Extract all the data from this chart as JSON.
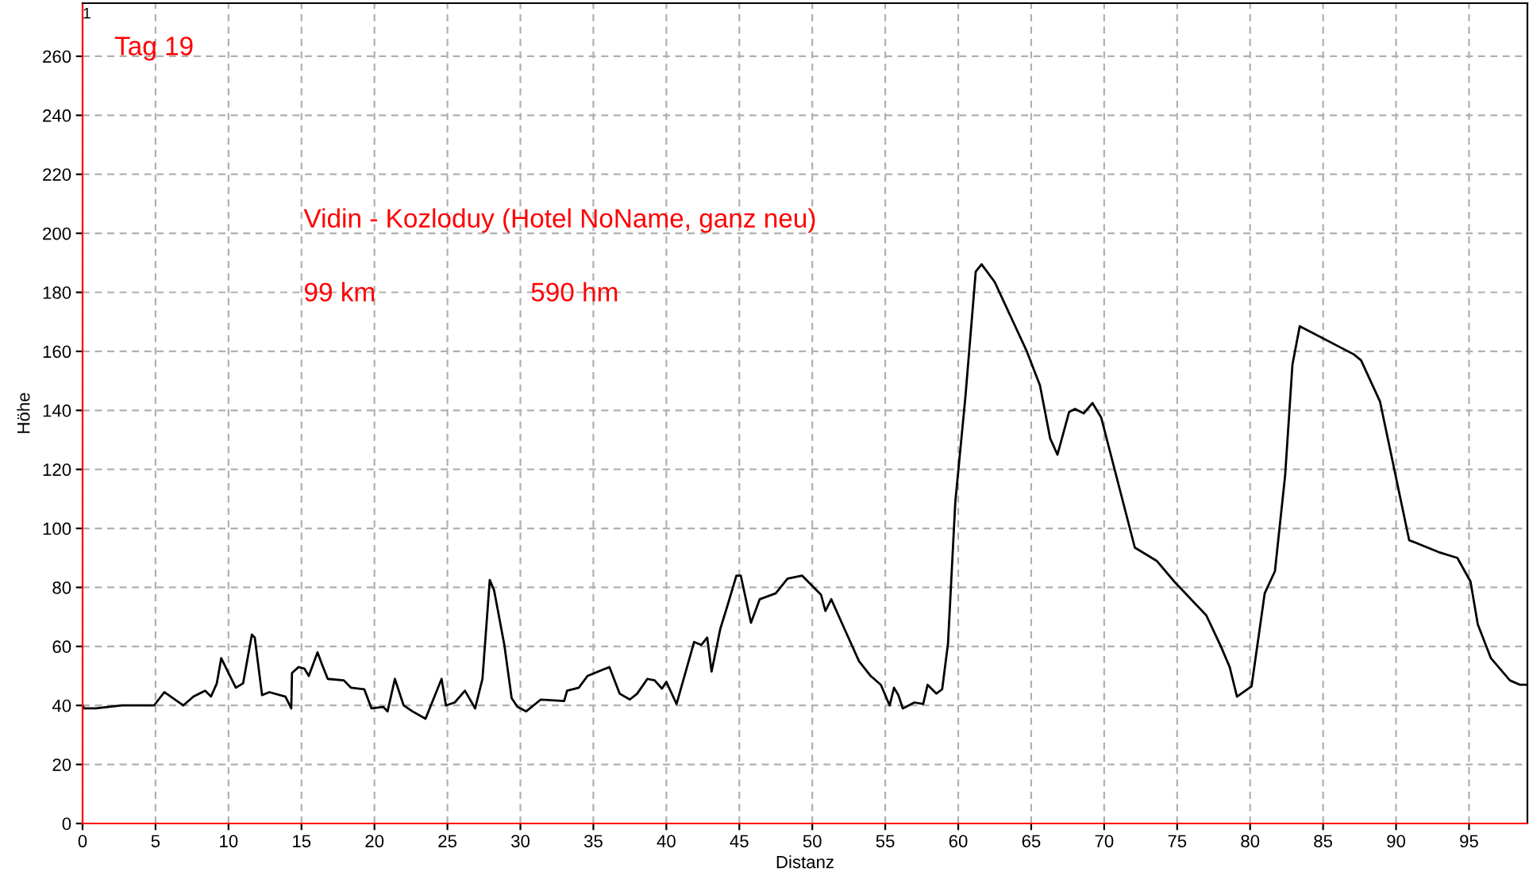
{
  "chart_data": {
    "type": "line",
    "title": "Tag 19",
    "subtitle": "Vidin - Kozloduy (Hotel NoName, ganz neu)",
    "annotations": [
      "99 km",
      "590 hm",
      "1"
    ],
    "xlabel": "Distanz",
    "ylabel": "Höhe",
    "series": [
      {
        "color": "#000000",
        "x": [
          0,
          0.1,
          0.9,
          2.7,
          4.9,
          5.6,
          6.9,
          7.6,
          8.4,
          8.8,
          9.2,
          9.5,
          10.5,
          11,
          11.6,
          11.8,
          12.3,
          12.8,
          13.9,
          14.3,
          14.35,
          14.8,
          15.2,
          15.5,
          16.1,
          16.4,
          16.8,
          17.9,
          18.4,
          19.3,
          19.8,
          20.6,
          20.9,
          21.4,
          22,
          22.6,
          23.5,
          24.6,
          24.9,
          25.5,
          26.2,
          26.9,
          27.4,
          27.9,
          28.2,
          28.9,
          29.4,
          29.8,
          30.4,
          31.4,
          33,
          33.2,
          34,
          34.6,
          36.1,
          36.8,
          37.5,
          38,
          38.7,
          39.2,
          39.7,
          40,
          40.7,
          41.9,
          42.4,
          42.8,
          43.1,
          43.7,
          44.2,
          44.8,
          45.1,
          45.8,
          46.4,
          47.5,
          48.3,
          49.3,
          50.6,
          50.9,
          51.3,
          52.2,
          53.2,
          54,
          54.7,
          55.3,
          55.6,
          55.9,
          56.2,
          57,
          57.6,
          57.9,
          58.5,
          58.9,
          59.3,
          59.8,
          60.5,
          61.2,
          61.6,
          62.5,
          64.7,
          65.6,
          66.3,
          66.8,
          67.6,
          68,
          68.6,
          69.2,
          69.8,
          72.1,
          73.6,
          74.8,
          77,
          78,
          78.6,
          79.1,
          80.1,
          81,
          81.7,
          82.4,
          82.9,
          83.4,
          87.1,
          87.6,
          88.9,
          90.9,
          92.9,
          94.2,
          95.1,
          95.6,
          96.5,
          97.8,
          98.5,
          99
        ],
        "values": [
          40,
          39,
          39,
          40,
          40,
          44.5,
          40,
          43,
          45,
          43,
          47.5,
          56,
          46,
          47.5,
          64,
          63,
          43.5,
          44.5,
          43,
          39,
          51,
          53,
          52.5,
          50,
          58,
          54,
          49,
          48.5,
          46,
          45.5,
          39,
          39.5,
          38,
          49,
          40,
          38,
          35.5,
          49,
          40,
          41,
          45,
          39,
          49,
          82.5,
          79,
          60.5,
          42.5,
          39.5,
          38,
          42,
          41.5,
          45,
          46,
          50,
          53,
          44,
          42,
          44,
          49,
          48.5,
          45.7,
          48,
          40.5,
          61.5,
          60.5,
          63,
          51.5,
          66,
          74,
          84,
          84,
          68,
          76,
          78,
          83,
          84,
          77.5,
          72,
          76,
          66,
          55,
          50,
          47,
          40,
          46,
          43.5,
          39,
          41,
          40.5,
          47,
          44,
          45.5,
          61,
          109,
          145,
          187,
          189.5,
          183.5,
          160,
          148.5,
          130.5,
          125,
          139.5,
          140.5,
          139,
          142.5,
          137.5,
          93.5,
          89,
          82,
          70.5,
          60,
          53,
          43,
          46.5,
          78,
          85.5,
          118,
          155.5,
          168.5,
          159,
          157,
          143,
          96,
          92,
          90,
          82,
          67.5,
          56,
          48.5,
          47,
          47
        ]
      }
    ],
    "xlim": [
      0,
      99
    ],
    "ylim": [
      0,
      278
    ],
    "xticks": [
      0,
      5,
      10,
      15,
      20,
      25,
      30,
      35,
      40,
      45,
      50,
      55,
      60,
      65,
      70,
      75,
      80,
      85,
      90,
      95
    ],
    "yticks": [
      0,
      20,
      40,
      60,
      80,
      100,
      120,
      140,
      160,
      180,
      200,
      220,
      240,
      260
    ],
    "grid": true,
    "line_style": "solid",
    "marker": "none",
    "legend": false
  }
}
